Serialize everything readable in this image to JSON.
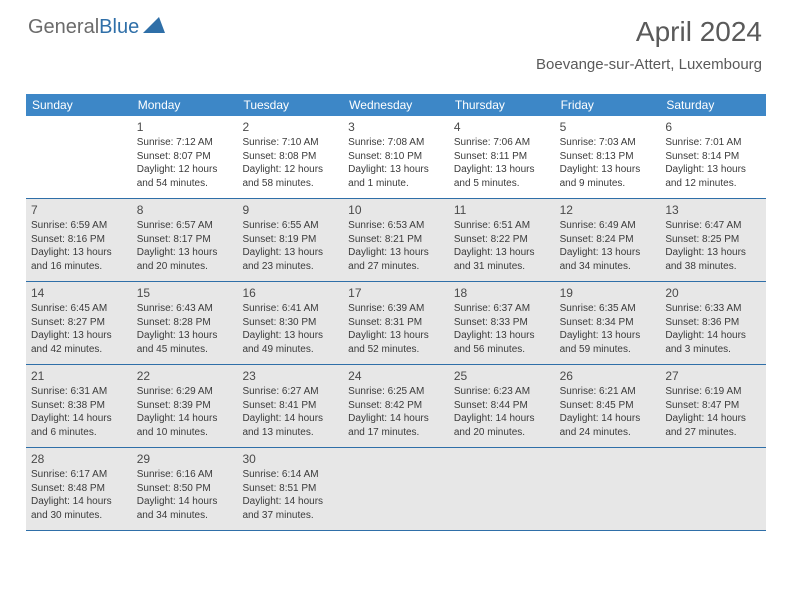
{
  "logo": {
    "part1": "General",
    "part2": "Blue"
  },
  "header": {
    "month": "April 2024",
    "location": "Boevange-sur-Attert, Luxembourg"
  },
  "colors": {
    "header_bar": "#3d87c7",
    "header_text": "#ffffff",
    "row_border": "#2f6fa8",
    "shaded_bg": "#e7e7e7",
    "body_text": "#3b3b3b",
    "title_text": "#5a5a5a",
    "logo_gray": "#6b6b6b",
    "logo_blue": "#2f6fa8"
  },
  "dow": [
    "Sunday",
    "Monday",
    "Tuesday",
    "Wednesday",
    "Thursday",
    "Friday",
    "Saturday"
  ],
  "weeks": [
    [
      {
        "num": "",
        "sunrise": "",
        "sunset": "",
        "daylight": "",
        "shaded": false,
        "empty": true
      },
      {
        "num": "1",
        "sunrise": "Sunrise: 7:12 AM",
        "sunset": "Sunset: 8:07 PM",
        "daylight": "Daylight: 12 hours and 54 minutes.",
        "shaded": false
      },
      {
        "num": "2",
        "sunrise": "Sunrise: 7:10 AM",
        "sunset": "Sunset: 8:08 PM",
        "daylight": "Daylight: 12 hours and 58 minutes.",
        "shaded": false
      },
      {
        "num": "3",
        "sunrise": "Sunrise: 7:08 AM",
        "sunset": "Sunset: 8:10 PM",
        "daylight": "Daylight: 13 hours and 1 minute.",
        "shaded": false
      },
      {
        "num": "4",
        "sunrise": "Sunrise: 7:06 AM",
        "sunset": "Sunset: 8:11 PM",
        "daylight": "Daylight: 13 hours and 5 minutes.",
        "shaded": false
      },
      {
        "num": "5",
        "sunrise": "Sunrise: 7:03 AM",
        "sunset": "Sunset: 8:13 PM",
        "daylight": "Daylight: 13 hours and 9 minutes.",
        "shaded": false
      },
      {
        "num": "6",
        "sunrise": "Sunrise: 7:01 AM",
        "sunset": "Sunset: 8:14 PM",
        "daylight": "Daylight: 13 hours and 12 minutes.",
        "shaded": false
      }
    ],
    [
      {
        "num": "7",
        "sunrise": "Sunrise: 6:59 AM",
        "sunset": "Sunset: 8:16 PM",
        "daylight": "Daylight: 13 hours and 16 minutes.",
        "shaded": true
      },
      {
        "num": "8",
        "sunrise": "Sunrise: 6:57 AM",
        "sunset": "Sunset: 8:17 PM",
        "daylight": "Daylight: 13 hours and 20 minutes.",
        "shaded": true
      },
      {
        "num": "9",
        "sunrise": "Sunrise: 6:55 AM",
        "sunset": "Sunset: 8:19 PM",
        "daylight": "Daylight: 13 hours and 23 minutes.",
        "shaded": true
      },
      {
        "num": "10",
        "sunrise": "Sunrise: 6:53 AM",
        "sunset": "Sunset: 8:21 PM",
        "daylight": "Daylight: 13 hours and 27 minutes.",
        "shaded": true
      },
      {
        "num": "11",
        "sunrise": "Sunrise: 6:51 AM",
        "sunset": "Sunset: 8:22 PM",
        "daylight": "Daylight: 13 hours and 31 minutes.",
        "shaded": true
      },
      {
        "num": "12",
        "sunrise": "Sunrise: 6:49 AM",
        "sunset": "Sunset: 8:24 PM",
        "daylight": "Daylight: 13 hours and 34 minutes.",
        "shaded": true
      },
      {
        "num": "13",
        "sunrise": "Sunrise: 6:47 AM",
        "sunset": "Sunset: 8:25 PM",
        "daylight": "Daylight: 13 hours and 38 minutes.",
        "shaded": true
      }
    ],
    [
      {
        "num": "14",
        "sunrise": "Sunrise: 6:45 AM",
        "sunset": "Sunset: 8:27 PM",
        "daylight": "Daylight: 13 hours and 42 minutes.",
        "shaded": true
      },
      {
        "num": "15",
        "sunrise": "Sunrise: 6:43 AM",
        "sunset": "Sunset: 8:28 PM",
        "daylight": "Daylight: 13 hours and 45 minutes.",
        "shaded": true
      },
      {
        "num": "16",
        "sunrise": "Sunrise: 6:41 AM",
        "sunset": "Sunset: 8:30 PM",
        "daylight": "Daylight: 13 hours and 49 minutes.",
        "shaded": true
      },
      {
        "num": "17",
        "sunrise": "Sunrise: 6:39 AM",
        "sunset": "Sunset: 8:31 PM",
        "daylight": "Daylight: 13 hours and 52 minutes.",
        "shaded": true
      },
      {
        "num": "18",
        "sunrise": "Sunrise: 6:37 AM",
        "sunset": "Sunset: 8:33 PM",
        "daylight": "Daylight: 13 hours and 56 minutes.",
        "shaded": true
      },
      {
        "num": "19",
        "sunrise": "Sunrise: 6:35 AM",
        "sunset": "Sunset: 8:34 PM",
        "daylight": "Daylight: 13 hours and 59 minutes.",
        "shaded": true
      },
      {
        "num": "20",
        "sunrise": "Sunrise: 6:33 AM",
        "sunset": "Sunset: 8:36 PM",
        "daylight": "Daylight: 14 hours and 3 minutes.",
        "shaded": true
      }
    ],
    [
      {
        "num": "21",
        "sunrise": "Sunrise: 6:31 AM",
        "sunset": "Sunset: 8:38 PM",
        "daylight": "Daylight: 14 hours and 6 minutes.",
        "shaded": true
      },
      {
        "num": "22",
        "sunrise": "Sunrise: 6:29 AM",
        "sunset": "Sunset: 8:39 PM",
        "daylight": "Daylight: 14 hours and 10 minutes.",
        "shaded": true
      },
      {
        "num": "23",
        "sunrise": "Sunrise: 6:27 AM",
        "sunset": "Sunset: 8:41 PM",
        "daylight": "Daylight: 14 hours and 13 minutes.",
        "shaded": true
      },
      {
        "num": "24",
        "sunrise": "Sunrise: 6:25 AM",
        "sunset": "Sunset: 8:42 PM",
        "daylight": "Daylight: 14 hours and 17 minutes.",
        "shaded": true
      },
      {
        "num": "25",
        "sunrise": "Sunrise: 6:23 AM",
        "sunset": "Sunset: 8:44 PM",
        "daylight": "Daylight: 14 hours and 20 minutes.",
        "shaded": true
      },
      {
        "num": "26",
        "sunrise": "Sunrise: 6:21 AM",
        "sunset": "Sunset: 8:45 PM",
        "daylight": "Daylight: 14 hours and 24 minutes.",
        "shaded": true
      },
      {
        "num": "27",
        "sunrise": "Sunrise: 6:19 AM",
        "sunset": "Sunset: 8:47 PM",
        "daylight": "Daylight: 14 hours and 27 minutes.",
        "shaded": true
      }
    ],
    [
      {
        "num": "28",
        "sunrise": "Sunrise: 6:17 AM",
        "sunset": "Sunset: 8:48 PM",
        "daylight": "Daylight: 14 hours and 30 minutes.",
        "shaded": true
      },
      {
        "num": "29",
        "sunrise": "Sunrise: 6:16 AM",
        "sunset": "Sunset: 8:50 PM",
        "daylight": "Daylight: 14 hours and 34 minutes.",
        "shaded": true
      },
      {
        "num": "30",
        "sunrise": "Sunrise: 6:14 AM",
        "sunset": "Sunset: 8:51 PM",
        "daylight": "Daylight: 14 hours and 37 minutes.",
        "shaded": true
      },
      {
        "num": "",
        "sunrise": "",
        "sunset": "",
        "daylight": "",
        "shaded": true,
        "empty": true
      },
      {
        "num": "",
        "sunrise": "",
        "sunset": "",
        "daylight": "",
        "shaded": true,
        "empty": true
      },
      {
        "num": "",
        "sunrise": "",
        "sunset": "",
        "daylight": "",
        "shaded": true,
        "empty": true
      },
      {
        "num": "",
        "sunrise": "",
        "sunset": "",
        "daylight": "",
        "shaded": true,
        "empty": true
      }
    ]
  ]
}
